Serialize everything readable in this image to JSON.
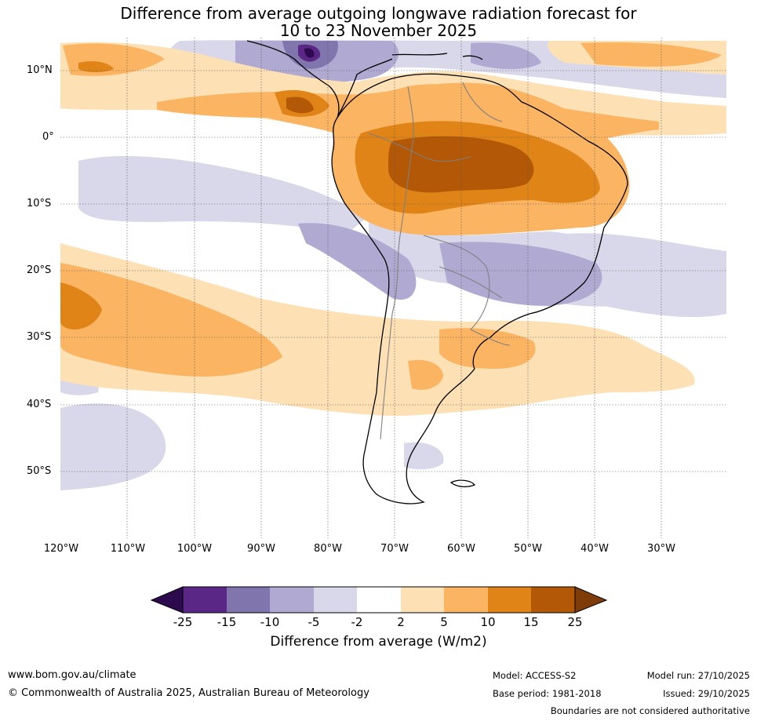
{
  "title": {
    "line1": "Difference from average outgoing longwave radiation forecast for",
    "line2": "10 to 23 November 2025"
  },
  "map": {
    "region": "South America",
    "lat_labels": [
      "10°N",
      "0°",
      "10°S",
      "20°S",
      "30°S",
      "40°S",
      "50°S"
    ],
    "lon_labels": [
      "120°W",
      "110°W",
      "100°W",
      "90°W",
      "80°W",
      "70°W",
      "60°W",
      "50°W",
      "40°W",
      "30°W"
    ]
  },
  "colorbar": {
    "label": "Difference from average (W/m2)",
    "ticks": [
      "-25",
      "-15",
      "-10",
      "-5",
      "-2",
      "2",
      "5",
      "10",
      "15",
      "25"
    ],
    "colors": [
      "#2d0a4e",
      "#5a2786",
      "#8175ae",
      "#b0aad2",
      "#d8d8ea",
      "#ffffff",
      "#fde0b4",
      "#fbb462",
      "#e08417",
      "#b35806",
      "#7f3b08"
    ]
  },
  "footer": {
    "website": "www.bom.gov.au/climate",
    "copyright": "© Commonwealth of Australia 2025, Australian Bureau of Meteorology",
    "model": "Model: ACCESS-S2",
    "base_period": "Base period: 1981-2018",
    "model_run": "Model run: 27/10/2025",
    "issued": "Issued: 29/10/2025",
    "disclaimer": "Boundaries are not considered authoritative"
  }
}
